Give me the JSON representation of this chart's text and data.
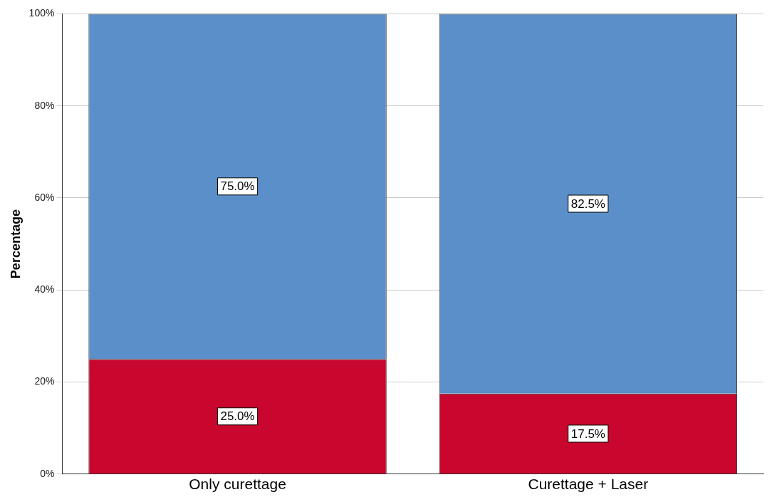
{
  "chart_data": {
    "type": "bar",
    "ylabel": "Percentage",
    "categories": [
      "Only curettage",
      "Curettage + Laser"
    ],
    "stacked": true,
    "series": [
      {
        "color": "#c8062e",
        "values": [
          25,
          17.5
        ],
        "value_labels": [
          "25.0%",
          "17.5%"
        ]
      },
      {
        "color": "#5b8fc9",
        "values": [
          75,
          82.5
        ],
        "value_labels": [
          "75.0%",
          "82.5%"
        ]
      }
    ],
    "ylim": [
      0,
      100
    ],
    "yticks": [
      {
        "value": 0,
        "label": "0%"
      },
      {
        "value": 20,
        "label": "20%"
      },
      {
        "value": 40,
        "label": "40%"
      },
      {
        "value": 60,
        "label": "60%"
      },
      {
        "value": 80,
        "label": "80%"
      },
      {
        "value": 100,
        "label": "100%"
      }
    ],
    "grid": "y",
    "legend": false
  }
}
